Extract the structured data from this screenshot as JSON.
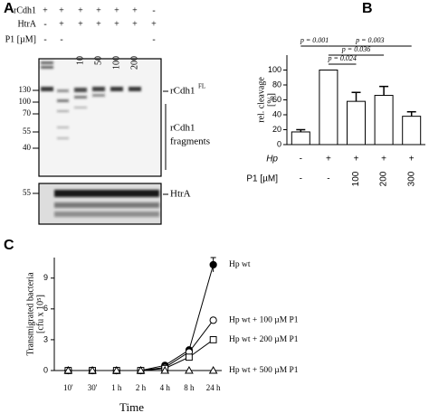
{
  "figure_labels": [
    "A",
    "B",
    "C"
  ],
  "blot": {
    "rows": [
      {
        "label": "rCdh1",
        "lanes": [
          "+",
          "+",
          "+",
          "+",
          "+",
          "+",
          "-"
        ]
      },
      {
        "label": "HtrA",
        "lanes": [
          "-",
          "+",
          "+",
          "+",
          "+",
          "+",
          "+"
        ]
      },
      {
        "label": "P1 [µM]",
        "lanes": [
          "-",
          "-",
          "10",
          "50",
          "100",
          "200",
          "-"
        ]
      }
    ],
    "markers": [
      "130",
      "100",
      "70",
      "55",
      "40"
    ],
    "lower_markers": [
      "55"
    ],
    "full_length": "rCdh1",
    "superscript": "FL",
    "fragments": [
      "rCdh1",
      "fragments"
    ],
    "htra": "HtrA"
  },
  "chart_data": [
    {
      "type": "bar",
      "y_label": [
        "rel. cleavage",
        "[%]"
      ],
      "values": [
        17,
        100,
        58,
        66,
        38
      ],
      "errors": [
        3,
        null,
        12,
        12,
        6
      ],
      "color": "#ffffff",
      "ylim": [
        0,
        120
      ],
      "yticks": [
        0,
        20,
        40,
        60,
        80,
        100
      ],
      "condition_rows": [
        {
          "name": "Hp",
          "labels": [
            "-",
            "+",
            "+",
            "+",
            "+"
          ]
        },
        {
          "name": "P1 [µM]",
          "labels": [
            "-",
            "-",
            "100",
            "200",
            "300"
          ]
        }
      ],
      "annotations": [
        "p = 0.001",
        "p = 0.003",
        "p = 0.036",
        "p = 0.024"
      ]
    },
    {
      "type": "line",
      "x_label": "Time",
      "y_label": [
        "Transmigrated bacteria",
        "[cfu x 10⁵]"
      ],
      "categories": [
        "10'",
        "30'",
        "1 h",
        "2 h",
        "4 h",
        "8 h",
        "24 h"
      ],
      "ylim": [
        0,
        11
      ],
      "yticks": [
        0,
        3,
        6,
        9
      ],
      "series": [
        {
          "name": "Hp wt",
          "color": "#000000",
          "marker": "circle",
          "filled": true,
          "values": [
            0,
            0,
            0,
            0,
            0.5,
            2,
            10.3
          ],
          "errors": [
            null,
            null,
            null,
            null,
            null,
            null,
            0.7
          ]
        },
        {
          "name": "Hp wt + 100 µM P1",
          "color": "#000000",
          "marker": "circle",
          "filled": false,
          "values": [
            0,
            0,
            0,
            0,
            0.3,
            1.8,
            4.9
          ]
        },
        {
          "name": "Hp wt + 200 µM P1",
          "color": "#000000",
          "marker": "square",
          "filled": false,
          "values": [
            0,
            0,
            0,
            0,
            0.2,
            1.3,
            3.0
          ]
        },
        {
          "name": "Hp wt + 500 µM P1",
          "color": "#000000",
          "marker": "triangle",
          "filled": false,
          "values": [
            0,
            0,
            0,
            0,
            0,
            0,
            0
          ]
        }
      ]
    }
  ]
}
